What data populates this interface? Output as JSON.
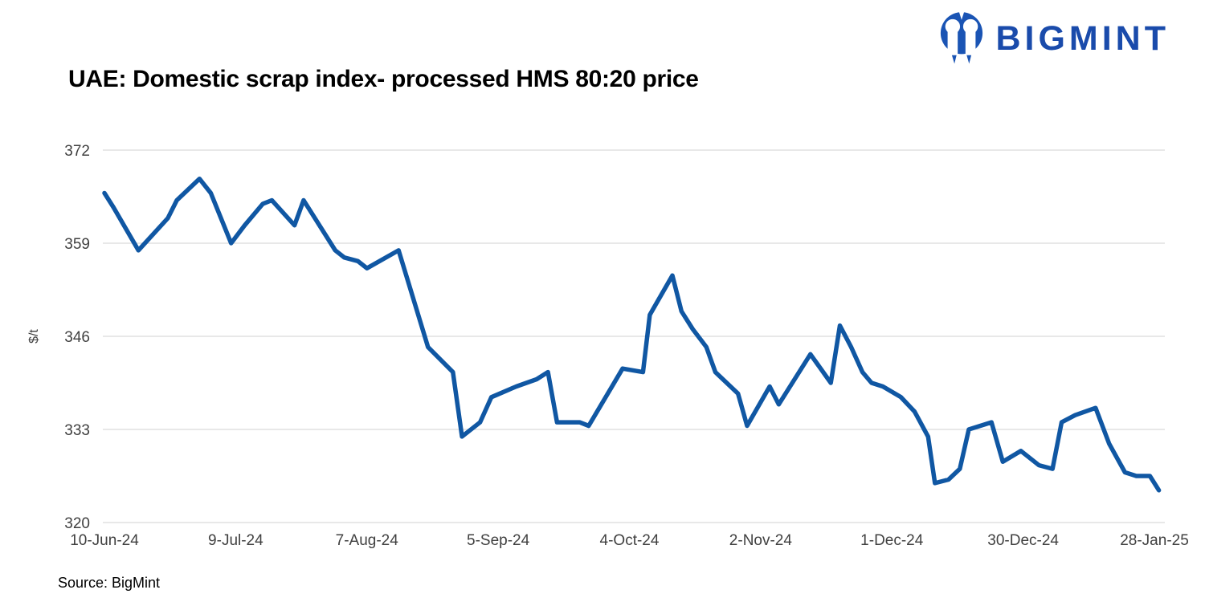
{
  "brand": {
    "name": "BIGMINT"
  },
  "title": "UAE: Domestic scrap index- processed HMS 80:20 price",
  "source": "Source: BigMint",
  "colors": {
    "line": "#1057a3",
    "grid": "#d9d9d9",
    "tick_text": "#404040",
    "title_text": "#000000",
    "logo_blue": "#1a54b4",
    "wordmark_blue": "#1a4bab",
    "background": "#ffffff"
  },
  "chart_data": {
    "type": "line",
    "title": "UAE: Domestic scrap index- processed HMS 80:20 price",
    "xlabel": "",
    "ylabel": "$/t",
    "ylim": [
      320,
      372
    ],
    "yticks": [
      372,
      359,
      346,
      333,
      320
    ],
    "grid": "horizontal-only",
    "legend": "none",
    "x_axis": {
      "unit": "days since 10-Jun-24",
      "tick_days": [
        0,
        29,
        58,
        87,
        116,
        145,
        174,
        203,
        232
      ],
      "tick_labels": [
        "10-Jun-24",
        "9-Jul-24",
        "7-Aug-24",
        "5-Sep-24",
        "4-Oct-24",
        "2-Nov-24",
        "1-Dec-24",
        "30-Dec-24",
        "28-Jan-25"
      ]
    },
    "series": [
      {
        "name": "UAE domestic scrap index, processed HMS 80:20 ($/t)",
        "points": [
          [
            0,
            366
          ],
          [
            2,
            364
          ],
          [
            7.5,
            358
          ],
          [
            14,
            362.5
          ],
          [
            16,
            365
          ],
          [
            21,
            368
          ],
          [
            23.5,
            366
          ],
          [
            28,
            359
          ],
          [
            31,
            361.5
          ],
          [
            35,
            364.5
          ],
          [
            37,
            365
          ],
          [
            42,
            361.5
          ],
          [
            44,
            365
          ],
          [
            51,
            358
          ],
          [
            53,
            357
          ],
          [
            56,
            356.5
          ],
          [
            58,
            355.5
          ],
          [
            65,
            358
          ],
          [
            71.5,
            344.5
          ],
          [
            77,
            341
          ],
          [
            79,
            332
          ],
          [
            83,
            334
          ],
          [
            85.5,
            337.5
          ],
          [
            91,
            339
          ],
          [
            95.5,
            340
          ],
          [
            98,
            341
          ],
          [
            100,
            334
          ],
          [
            105,
            334
          ],
          [
            107,
            333.5
          ],
          [
            114.5,
            341.5
          ],
          [
            119,
            341
          ],
          [
            120.5,
            349
          ],
          [
            125.5,
            354.5
          ],
          [
            127.5,
            349.5
          ],
          [
            130,
            347
          ],
          [
            133,
            344.5
          ],
          [
            135,
            341
          ],
          [
            140,
            338
          ],
          [
            142,
            333.5
          ],
          [
            147,
            339
          ],
          [
            149,
            336.5
          ],
          [
            156,
            343.5
          ],
          [
            160.5,
            339.5
          ],
          [
            162.5,
            347.5
          ],
          [
            165,
            344.5
          ],
          [
            167.5,
            341
          ],
          [
            169.5,
            339.5
          ],
          [
            172,
            339
          ],
          [
            176,
            337.5
          ],
          [
            179,
            335.5
          ],
          [
            182,
            332
          ],
          [
            183.5,
            325.5
          ],
          [
            186.5,
            326
          ],
          [
            189,
            327.5
          ],
          [
            191,
            333
          ],
          [
            196,
            334
          ],
          [
            198.5,
            328.5
          ],
          [
            202.5,
            330
          ],
          [
            206.5,
            328
          ],
          [
            209.5,
            327.5
          ],
          [
            211.5,
            334
          ],
          [
            214.5,
            335
          ],
          [
            219,
            336
          ],
          [
            222,
            331
          ],
          [
            225.5,
            327
          ],
          [
            228,
            326.5
          ],
          [
            231,
            326.5
          ],
          [
            233,
            324.5
          ]
        ]
      }
    ]
  }
}
